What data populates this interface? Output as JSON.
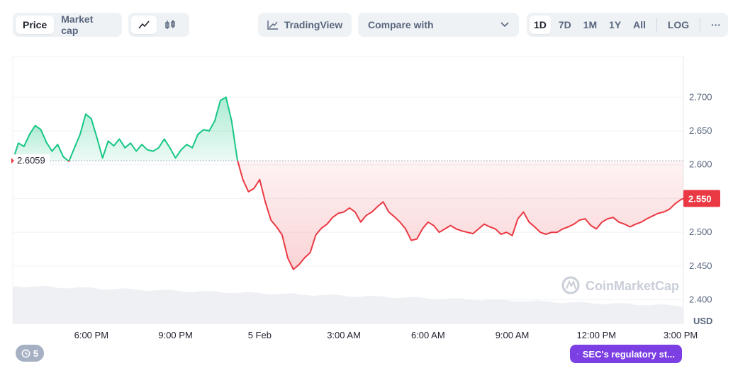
{
  "toolbar": {
    "view_tabs": [
      "Price",
      "Market cap"
    ],
    "active_view": "Price",
    "chart_type_icons": [
      "line-chart-icon",
      "candlestick-icon"
    ],
    "tradingview_label": "TradingView",
    "compare_label": "Compare with",
    "ranges": [
      "1D",
      "7D",
      "1M",
      "1Y",
      "All"
    ],
    "active_range": "1D",
    "log_label": "LOG",
    "more_label": "···"
  },
  "chart_data": {
    "type": "area",
    "title": "",
    "xlabel": "",
    "ylabel": "USD",
    "currency_label": "USD",
    "baseline_value": 2.6059,
    "baseline_label": "2.6059",
    "current_price": 2.55,
    "current_price_label": "2.550",
    "ylim": [
      2.365,
      2.76
    ],
    "y_ticks": [
      2.4,
      2.45,
      2.5,
      2.55,
      2.6,
      2.65,
      2.7
    ],
    "y_tick_labels": [
      "2.400",
      "2.450",
      "2.500",
      "2.550",
      "2.600",
      "2.650",
      "2.700"
    ],
    "x_range_hours": [
      15.2,
      39.1
    ],
    "x_ticks": [
      {
        "hour": 18,
        "label": "6:00 PM"
      },
      {
        "hour": 21,
        "label": "9:00 PM"
      },
      {
        "hour": 24,
        "label": "5 Feb"
      },
      {
        "hour": 27,
        "label": "3:00 AM"
      },
      {
        "hour": 30,
        "label": "6:00 AM"
      },
      {
        "hour": 33,
        "label": "9:00 AM"
      },
      {
        "hour": 36,
        "label": "12:00 PM"
      },
      {
        "hour": 39,
        "label": "3:00 PM"
      }
    ],
    "colors": {
      "up": "#16c784",
      "down": "#ea3943"
    },
    "series": [
      {
        "x": [
          15.2,
          15.4,
          15.6,
          15.8,
          16.0,
          16.2,
          16.4,
          16.6,
          16.8,
          17.0,
          17.2,
          17.4,
          17.6,
          17.8,
          18.0,
          18.2,
          18.4,
          18.6,
          18.8,
          19.0,
          19.2,
          19.4,
          19.6,
          19.8,
          20.0,
          20.2,
          20.4,
          20.6,
          20.8,
          21.0,
          21.2,
          21.4,
          21.6,
          21.8,
          22.0,
          22.2,
          22.4,
          22.6,
          22.8,
          23.0,
          23.2,
          23.4,
          23.6,
          23.8,
          24.0,
          24.2,
          24.4,
          24.6,
          24.8,
          25.0,
          25.2,
          25.4,
          25.6,
          25.8,
          26.0,
          26.2,
          26.4,
          26.6,
          26.8,
          27.0,
          27.2,
          27.4,
          27.6,
          27.8,
          28.0,
          28.2,
          28.4,
          28.6,
          28.8,
          29.0,
          29.2,
          29.4,
          29.6,
          29.8,
          30.0,
          30.2,
          30.4,
          30.6,
          30.8,
          31.0,
          31.2,
          31.4,
          31.6,
          31.8,
          32.0,
          32.2,
          32.4,
          32.6,
          32.8,
          33.0,
          33.2,
          33.4,
          33.6,
          33.8,
          34.0,
          34.2,
          34.4,
          34.6,
          34.8,
          35.0,
          35.2,
          35.4,
          35.6,
          35.8,
          36.0,
          36.2,
          36.4,
          36.6,
          36.8,
          37.0,
          37.2,
          37.4,
          37.6,
          37.8,
          38.0,
          38.2,
          38.4,
          38.6,
          38.8,
          39.0,
          39.1
        ],
        "values": [
          2.6059,
          2.632,
          2.627,
          2.645,
          2.658,
          2.652,
          2.633,
          2.62,
          2.63,
          2.612,
          2.605,
          2.625,
          2.645,
          2.675,
          2.668,
          2.64,
          2.61,
          2.635,
          2.628,
          2.638,
          2.625,
          2.632,
          2.62,
          2.63,
          2.622,
          2.62,
          2.625,
          2.638,
          2.625,
          2.61,
          2.622,
          2.63,
          2.625,
          2.645,
          2.652,
          2.65,
          2.665,
          2.695,
          2.7,
          2.665,
          2.608,
          2.578,
          2.56,
          2.565,
          2.578,
          2.545,
          2.518,
          2.508,
          2.496,
          2.462,
          2.445,
          2.452,
          2.462,
          2.47,
          2.496,
          2.506,
          2.512,
          2.522,
          2.528,
          2.53,
          2.536,
          2.53,
          2.515,
          2.525,
          2.53,
          2.538,
          2.545,
          2.53,
          2.523,
          2.515,
          2.505,
          2.488,
          2.49,
          2.505,
          2.515,
          2.51,
          2.5,
          2.505,
          2.51,
          2.505,
          2.502,
          2.5,
          2.498,
          2.505,
          2.512,
          2.508,
          2.505,
          2.497,
          2.5,
          2.495,
          2.52,
          2.53,
          2.515,
          2.508,
          2.5,
          2.497,
          2.5,
          2.5,
          2.505,
          2.508,
          2.512,
          2.518,
          2.52,
          2.51,
          2.505,
          2.515,
          2.52,
          2.522,
          2.515,
          2.512,
          2.508,
          2.512,
          2.515,
          2.52,
          2.524,
          2.528,
          2.53,
          2.534,
          2.542,
          2.548,
          2.55
        ]
      }
    ],
    "volume_band": {
      "label": "volume",
      "shown": true
    }
  },
  "watermark": "CoinMarketCap",
  "bottom": {
    "history_count": "5",
    "news_label": "SEC's regulatory st..."
  }
}
